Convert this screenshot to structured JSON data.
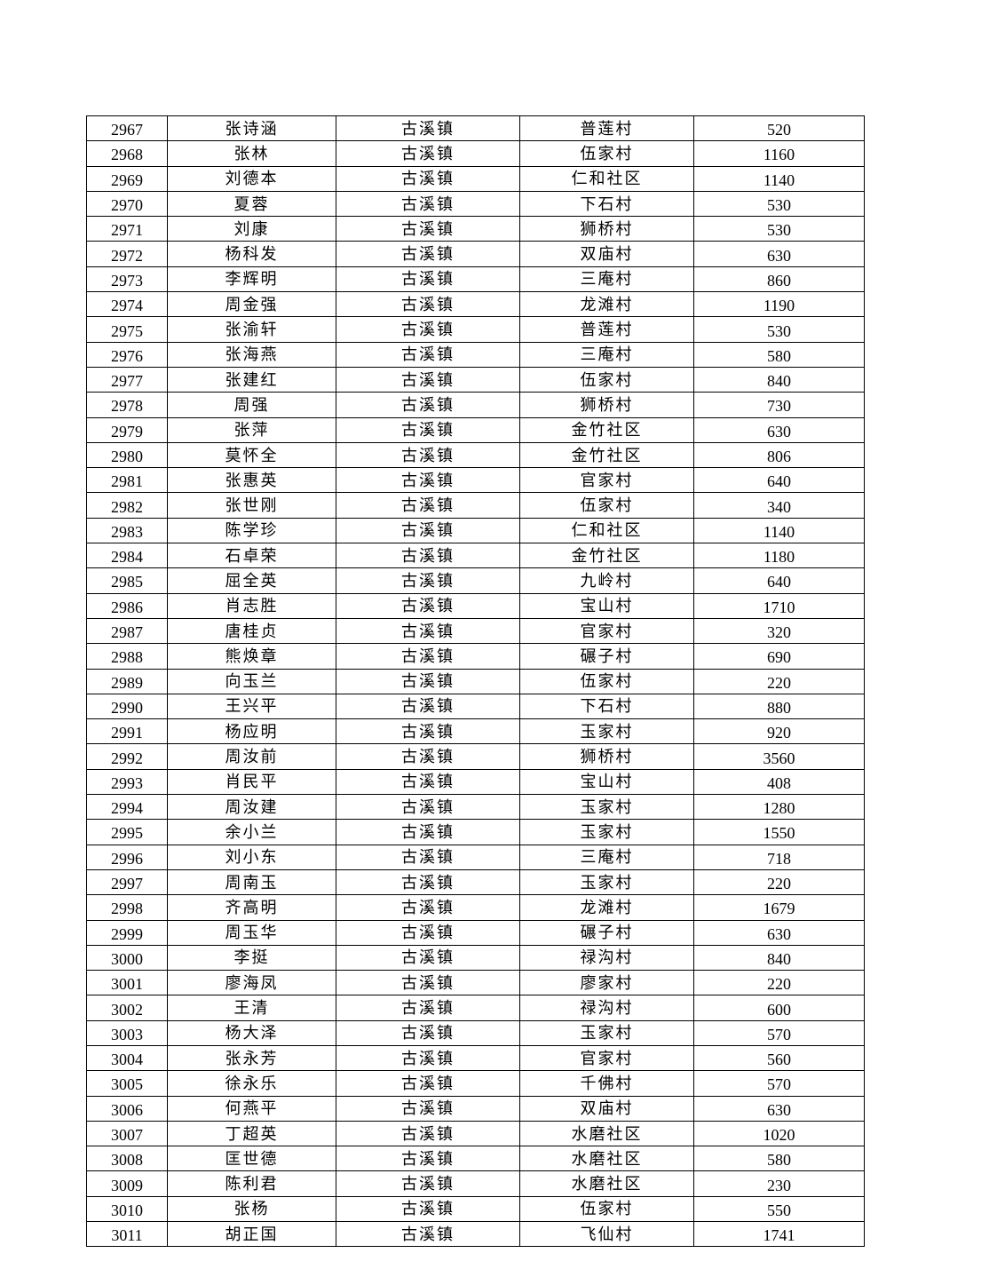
{
  "table": {
    "rows": [
      [
        "2967",
        "张诗涵",
        "古溪镇",
        "普莲村",
        "520"
      ],
      [
        "2968",
        "张林",
        "古溪镇",
        "伍家村",
        "1160"
      ],
      [
        "2969",
        "刘德本",
        "古溪镇",
        "仁和社区",
        "1140"
      ],
      [
        "2970",
        "夏蓉",
        "古溪镇",
        "下石村",
        "530"
      ],
      [
        "2971",
        "刘康",
        "古溪镇",
        "狮桥村",
        "530"
      ],
      [
        "2972",
        "杨科发",
        "古溪镇",
        "双庙村",
        "630"
      ],
      [
        "2973",
        "李辉明",
        "古溪镇",
        "三庵村",
        "860"
      ],
      [
        "2974",
        "周金强",
        "古溪镇",
        "龙滩村",
        "1190"
      ],
      [
        "2975",
        "张渝轩",
        "古溪镇",
        "普莲村",
        "530"
      ],
      [
        "2976",
        "张海燕",
        "古溪镇",
        "三庵村",
        "580"
      ],
      [
        "2977",
        "张建红",
        "古溪镇",
        "伍家村",
        "840"
      ],
      [
        "2978",
        "周强",
        "古溪镇",
        "狮桥村",
        "730"
      ],
      [
        "2979",
        "张萍",
        "古溪镇",
        "金竹社区",
        "630"
      ],
      [
        "2980",
        "莫怀全",
        "古溪镇",
        "金竹社区",
        "806"
      ],
      [
        "2981",
        "张惠英",
        "古溪镇",
        "官家村",
        "640"
      ],
      [
        "2982",
        "张世刚",
        "古溪镇",
        "伍家村",
        "340"
      ],
      [
        "2983",
        "陈学珍",
        "古溪镇",
        "仁和社区",
        "1140"
      ],
      [
        "2984",
        "石卓荣",
        "古溪镇",
        "金竹社区",
        "1180"
      ],
      [
        "2985",
        "屈全英",
        "古溪镇",
        "九岭村",
        "640"
      ],
      [
        "2986",
        "肖志胜",
        "古溪镇",
        "宝山村",
        "1710"
      ],
      [
        "2987",
        "唐桂贞",
        "古溪镇",
        "官家村",
        "320"
      ],
      [
        "2988",
        "熊焕章",
        "古溪镇",
        "碾子村",
        "690"
      ],
      [
        "2989",
        "向玉兰",
        "古溪镇",
        "伍家村",
        "220"
      ],
      [
        "2990",
        "王兴平",
        "古溪镇",
        "下石村",
        "880"
      ],
      [
        "2991",
        "杨应明",
        "古溪镇",
        "玉家村",
        "920"
      ],
      [
        "2992",
        "周汝前",
        "古溪镇",
        "狮桥村",
        "3560"
      ],
      [
        "2993",
        "肖民平",
        "古溪镇",
        "宝山村",
        "408"
      ],
      [
        "2994",
        "周汝建",
        "古溪镇",
        "玉家村",
        "1280"
      ],
      [
        "2995",
        "余小兰",
        "古溪镇",
        "玉家村",
        "1550"
      ],
      [
        "2996",
        "刘小东",
        "古溪镇",
        "三庵村",
        "718"
      ],
      [
        "2997",
        "周南玉",
        "古溪镇",
        "玉家村",
        "220"
      ],
      [
        "2998",
        "齐高明",
        "古溪镇",
        "龙滩村",
        "1679"
      ],
      [
        "2999",
        "周玉华",
        "古溪镇",
        "碾子村",
        "630"
      ],
      [
        "3000",
        "李挺",
        "古溪镇",
        "禄沟村",
        "840"
      ],
      [
        "3001",
        "廖海凤",
        "古溪镇",
        "廖家村",
        "220"
      ],
      [
        "3002",
        "王清",
        "古溪镇",
        "禄沟村",
        "600"
      ],
      [
        "3003",
        "杨大泽",
        "古溪镇",
        "玉家村",
        "570"
      ],
      [
        "3004",
        "张永芳",
        "古溪镇",
        "官家村",
        "560"
      ],
      [
        "3005",
        "徐永乐",
        "古溪镇",
        "千佛村",
        "570"
      ],
      [
        "3006",
        "何燕平",
        "古溪镇",
        "双庙村",
        "630"
      ],
      [
        "3007",
        "丁超英",
        "古溪镇",
        "水磨社区",
        "1020"
      ],
      [
        "3008",
        "匡世德",
        "古溪镇",
        "水磨社区",
        "580"
      ],
      [
        "3009",
        "陈利君",
        "古溪镇",
        "水磨社区",
        "230"
      ],
      [
        "3010",
        "张杨",
        "古溪镇",
        "伍家村",
        "550"
      ],
      [
        "3011",
        "胡正国",
        "古溪镇",
        "飞仙村",
        "1741"
      ]
    ]
  }
}
